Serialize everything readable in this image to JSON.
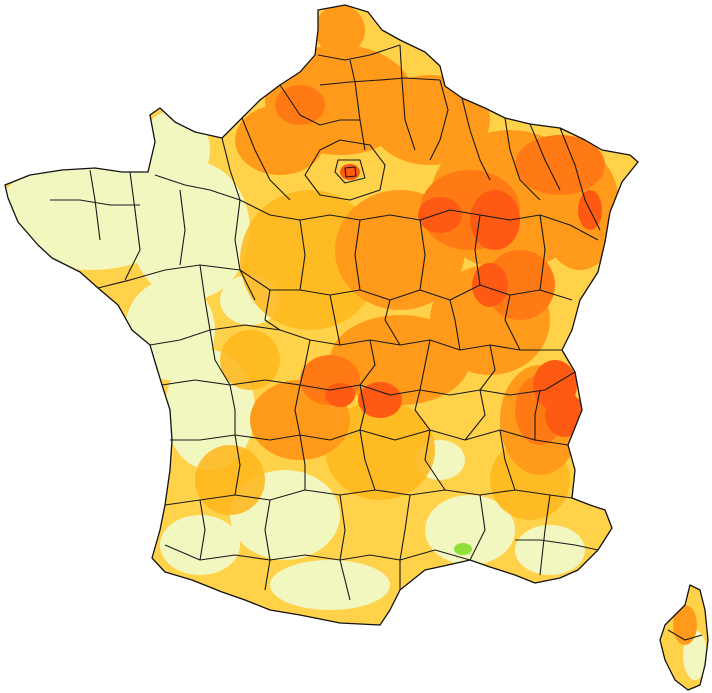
{
  "map": {
    "palette": {
      "pale": "#f2f7c0",
      "yellow": "#ffd24a",
      "gold": "#ffb71c",
      "orange": "#ff9a1a",
      "dark_orange": "#ff7a14",
      "red_orange": "#ff5a14",
      "green": "#8fe03a",
      "border": "#1a1a1a",
      "background": "#ffffff"
    },
    "regions": [
      {
        "name": "mainland-france"
      },
      {
        "name": "corsica"
      }
    ]
  }
}
